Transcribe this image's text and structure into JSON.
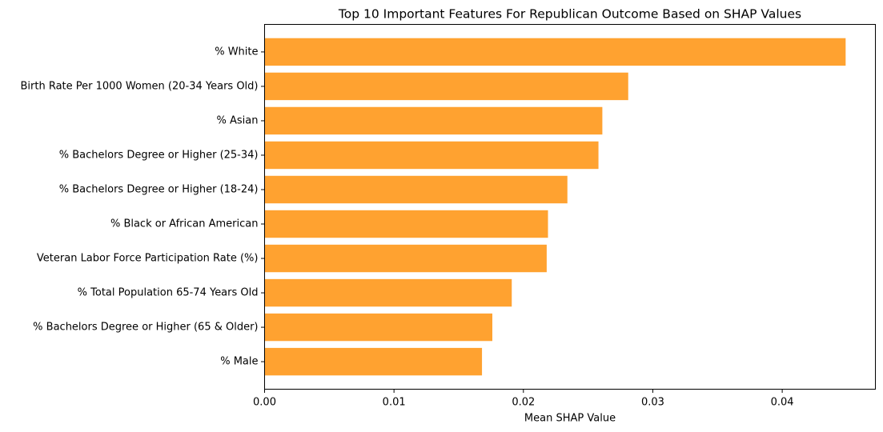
{
  "chart_data": {
    "type": "bar",
    "orientation": "horizontal",
    "title": "Top 10 Important Features For Republican Outcome Based on SHAP Values",
    "xlabel": "Mean SHAP Value",
    "ylabel": "",
    "xlim": [
      0,
      0.0472
    ],
    "xticks": [
      0.0,
      0.01,
      0.02,
      0.03,
      0.04
    ],
    "xtick_labels": [
      "0.00",
      "0.01",
      "0.02",
      "0.03",
      "0.04"
    ],
    "grid": false,
    "bar_color": "#ffa230",
    "categories": [
      "% White",
      "Birth Rate Per 1000 Women (20-34 Years Old)",
      "% Asian",
      "% Bachelors Degree or Higher (25-34)",
      "% Bachelors Degree or Higher (18-24)",
      "% Black or African American",
      "Veteran Labor Force Participation Rate (%)",
      "% Total Population 65-74 Years Old",
      "% Bachelors Degree or Higher (65 & Older)",
      "% Male"
    ],
    "values": [
      0.0449,
      0.0281,
      0.0261,
      0.0258,
      0.0234,
      0.0219,
      0.0218,
      0.0191,
      0.0176,
      0.0168
    ]
  }
}
